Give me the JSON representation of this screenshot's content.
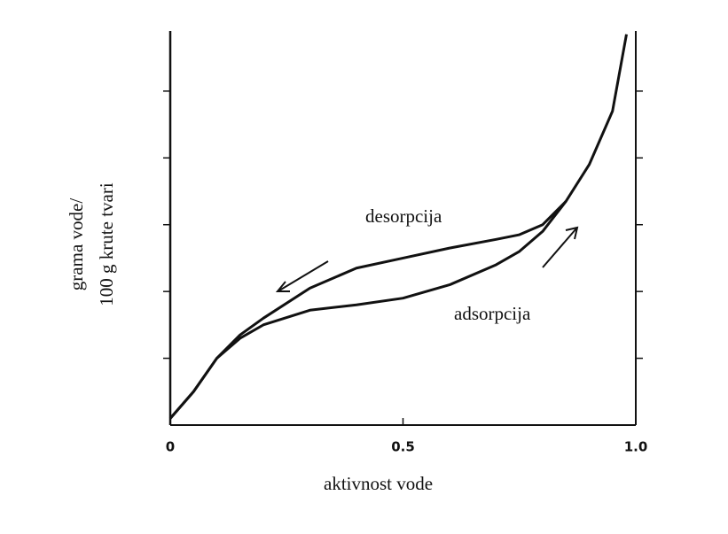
{
  "chart_data": {
    "type": "line",
    "xlabel": "aktivnost vode",
    "ylabel": [
      "grama vode/",
      "100 g krute  tvari"
    ],
    "x": [
      0,
      0.05,
      0.1,
      0.15,
      0.2,
      0.3,
      0.4,
      0.5,
      0.6,
      0.7,
      0.75,
      0.8,
      0.85,
      0.9,
      0.95,
      0.98
    ],
    "series": [
      {
        "name": "desorpcija",
        "color": "#111111",
        "values": [
          0.1,
          0.5,
          1.0,
          1.35,
          1.6,
          2.05,
          2.35,
          2.5,
          2.65,
          2.78,
          2.85,
          3.0,
          3.35,
          3.9,
          4.7,
          5.85
        ]
      },
      {
        "name": "adsorpcija",
        "color": "#111111",
        "values": [
          0.1,
          0.5,
          1.0,
          1.3,
          1.5,
          1.72,
          1.8,
          1.9,
          2.1,
          2.4,
          2.6,
          2.9,
          3.35,
          null,
          null,
          null
        ]
      }
    ],
    "xlim": [
      0,
      1
    ],
    "xticks": [
      0,
      0.5,
      {
        "value": 1,
        "label": "1.0"
      }
    ],
    "ylim": [
      0,
      5.9
    ],
    "yticks": [
      1,
      2,
      3,
      4,
      5
    ]
  }
}
